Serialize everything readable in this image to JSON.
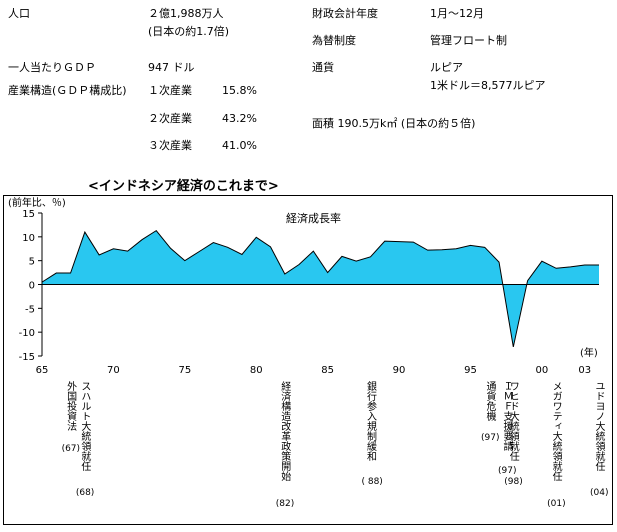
{
  "profile": {
    "population_label": "人口",
    "population_value": "２億1,988万人",
    "population_note": "(日本の約1.7倍)",
    "gdp_per_capita_label": "一人当たりＧＤＰ",
    "gdp_per_capita_value": "947 ドル",
    "structure_label": "産業構造(ＧＤＰ構成比)",
    "sectors": [
      {
        "name": "１次産業",
        "share": "15.8%"
      },
      {
        "name": "２次産業",
        "share": "43.2%"
      },
      {
        "name": "３次産業",
        "share": "41.0%"
      }
    ],
    "fiscal_year_label": "財政会計年度",
    "fiscal_year_value": "1月～12月",
    "fx_label": "為替制度",
    "fx_value": "管理フロート制",
    "currency_label": "通貨",
    "currency_value": "ルピア",
    "rate_value": "1米ドル＝8,577ルピア",
    "area_text": "面積 190.5万k㎡ (日本の約５倍)"
  },
  "section_title": "<インドネシア経済のこれまで>",
  "chart_data": {
    "type": "area",
    "title": "経済成長率",
    "ylabel": "(前年比、％)",
    "xlabel": "(年)",
    "ylim": [
      -15,
      15
    ],
    "yticks": [
      15,
      10,
      5,
      0,
      -5,
      -10,
      -15
    ],
    "xlim": [
      1965,
      2004
    ],
    "xticks": [
      {
        "value": 1965,
        "label": "65"
      },
      {
        "value": 1970,
        "label": "70"
      },
      {
        "value": 1975,
        "label": "75"
      },
      {
        "value": 1980,
        "label": "80"
      },
      {
        "value": 1985,
        "label": "85"
      },
      {
        "value": 1990,
        "label": "90"
      },
      {
        "value": 1995,
        "label": "95"
      },
      {
        "value": 2000,
        "label": "00"
      },
      {
        "value": 2003,
        "label": "03"
      }
    ],
    "x": [
      1965,
      1966,
      1967,
      1968,
      1969,
      1970,
      1971,
      1972,
      1973,
      1974,
      1975,
      1976,
      1977,
      1978,
      1979,
      1980,
      1981,
      1982,
      1983,
      1984,
      1985,
      1986,
      1987,
      1988,
      1989,
      1990,
      1991,
      1992,
      1993,
      1994,
      1995,
      1996,
      1997,
      1998,
      1999,
      2000,
      2001,
      2002,
      2003,
      2004
    ],
    "values": [
      0.5,
      2.4,
      2.4,
      11.0,
      6.2,
      7.5,
      7.0,
      9.4,
      11.3,
      7.6,
      5.0,
      6.9,
      8.8,
      7.8,
      6.3,
      9.9,
      7.9,
      2.2,
      4.2,
      7.0,
      2.5,
      5.9,
      4.9,
      5.8,
      9.1,
      9.0,
      8.9,
      7.2,
      7.3,
      7.5,
      8.2,
      7.8,
      4.7,
      -13.1,
      0.8,
      4.9,
      3.4,
      3.7,
      4.1,
      4.1
    ],
    "color": "#29c7f0",
    "events": [
      {
        "label": "外国投資法",
        "year_label": "(67)",
        "year": 1967
      },
      {
        "label": "スハルト大統領就任",
        "year_label": "(68)",
        "year": 1968
      },
      {
        "label": "経済構造改革政策開始",
        "year_label": "(82)",
        "year": 1982
      },
      {
        "label": "銀行参入規制緩和",
        "year_label": "( 88)",
        "year": 1988
      },
      {
        "label": "通貨危機",
        "year_label": "(97)",
        "year": 1997
      },
      {
        "label": "ＩＭＦ支援要請",
        "year_label": "(97)",
        "year": 1997
      },
      {
        "label": "ワヒド大統領就任",
        "year_label": "(98)",
        "year": 1998
      },
      {
        "label": "メガワティ大統領就任",
        "year_label": "(01)",
        "year": 2001
      },
      {
        "label": "ユドヨノ大統領就任",
        "year_label": "(04)",
        "year": 2004
      }
    ]
  }
}
